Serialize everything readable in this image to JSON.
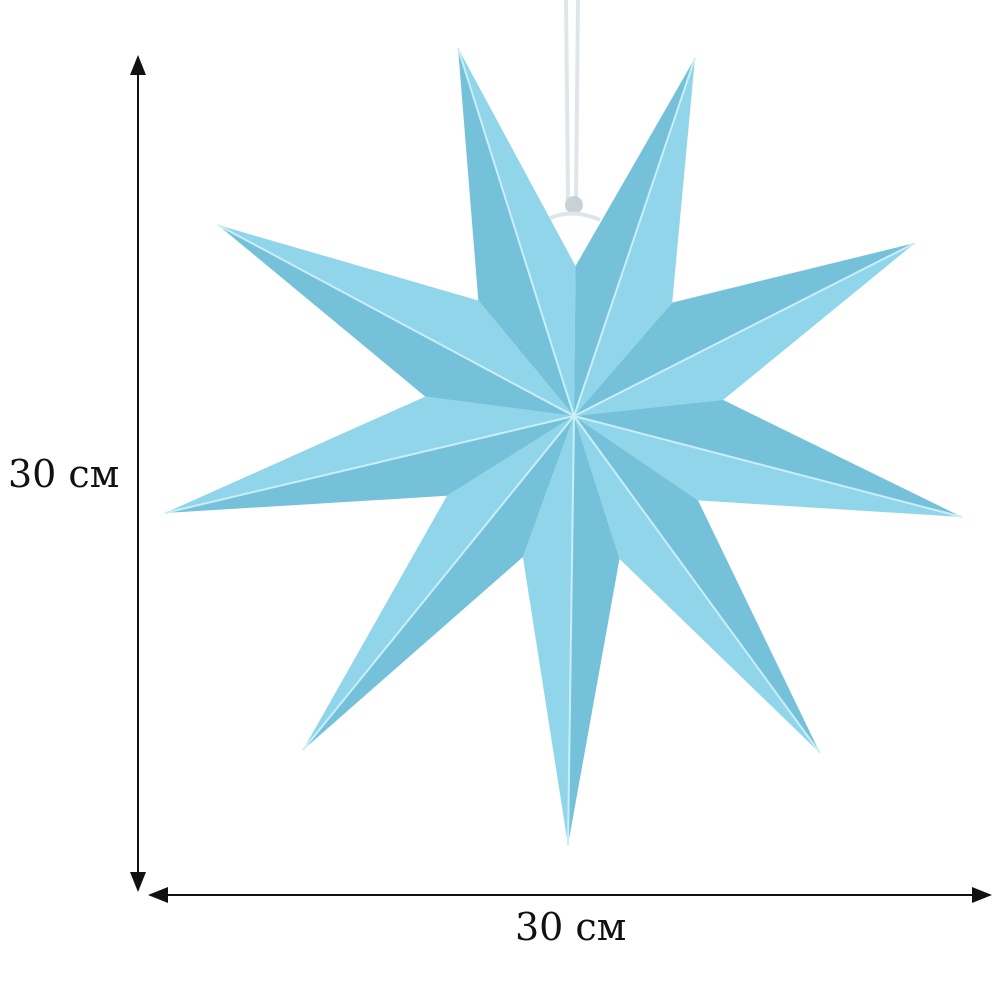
{
  "dimensions": {
    "height_label": "30 см",
    "width_label": "30 см"
  },
  "product": {
    "type": "nine-point paper star",
    "points": 9,
    "colors": {
      "light_face": "#90d5ea",
      "dark_face": "#76c1da",
      "crease": "#c9eef8",
      "hanger": "#e8eef2"
    }
  }
}
